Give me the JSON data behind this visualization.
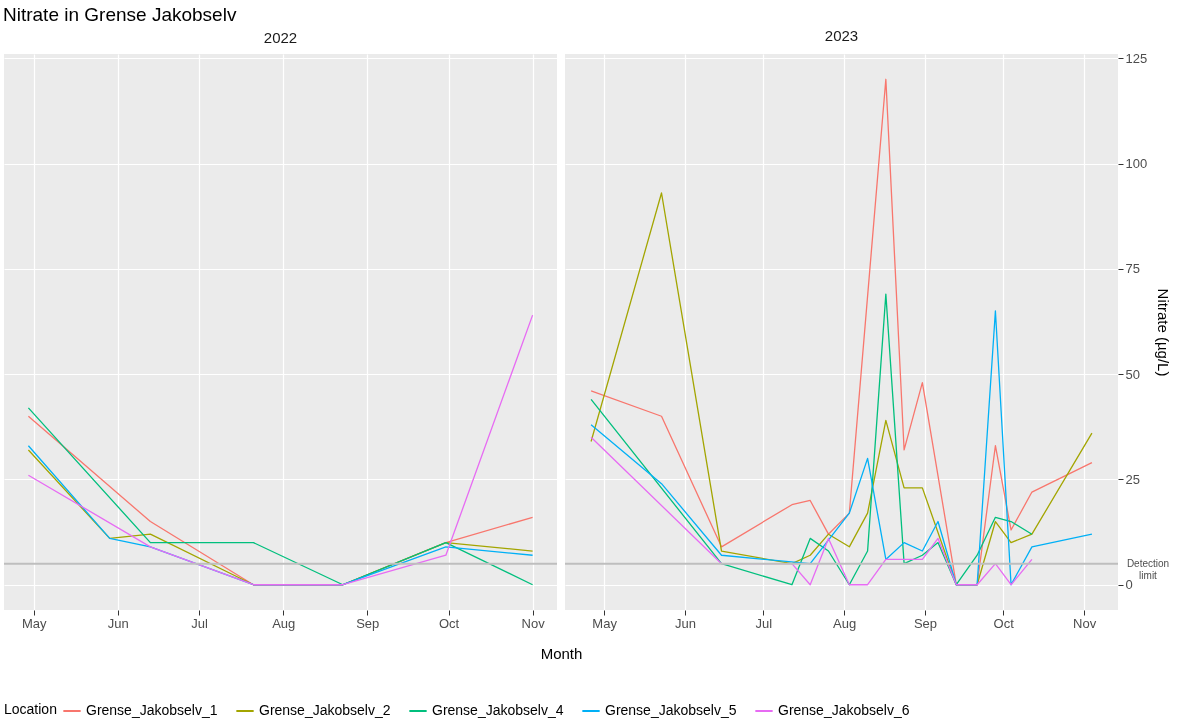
{
  "chart_data": [
    {
      "type": "line",
      "title": "Nitrate in Grense Jakobselv",
      "subtitle": "2022",
      "legend_title": "Location",
      "legend": "bottom",
      "xlim": [
        "2022-04-20",
        "2022-11-10"
      ],
      "ylim": [
        -6,
        126
      ],
      "xticks": [
        {
          "value": "2022-05-01",
          "label": "May"
        },
        {
          "value": "2022-06-01",
          "label": "Jun"
        },
        {
          "value": "2022-07-01",
          "label": "Jul"
        },
        {
          "value": "2022-08-01",
          "label": "Aug"
        },
        {
          "value": "2022-09-01",
          "label": "Sep"
        },
        {
          "value": "2022-10-01",
          "label": "Oct"
        },
        {
          "value": "2022-11-01",
          "label": "Nov"
        }
      ],
      "yticks": [
        0,
        25,
        50,
        75,
        100,
        125
      ],
      "tick_labels": "x",
      "grid": true,
      "ref_lines": [
        {
          "axis": "y",
          "value": 5,
          "color": "#bebebe"
        }
      ],
      "series": [
        {
          "name": "Grense_Jakobselv_1",
          "color": "#f8766d",
          "x": [
            "2022-04-29",
            "2022-06-13",
            "2022-07-21",
            "2022-08-23",
            "2022-09-30",
            "2022-11-01"
          ],
          "values": [
            40,
            15,
            0,
            0,
            10,
            16
          ]
        },
        {
          "name": "Grense_Jakobselv_2",
          "color": "#a3a500",
          "x": [
            "2022-04-29",
            "2022-05-29",
            "2022-06-13",
            "2022-07-21",
            "2022-08-23",
            "2022-09-30",
            "2022-11-01"
          ],
          "values": [
            32,
            11,
            12,
            0,
            0,
            10,
            8
          ]
        },
        {
          "name": "Grense_Jakobselv_4",
          "color": "#00bf7d",
          "x": [
            "2022-04-29",
            "2022-06-13",
            "2022-07-21",
            "2022-08-23",
            "2022-09-30",
            "2022-11-01"
          ],
          "values": [
            42,
            10,
            10,
            0,
            10,
            0
          ]
        },
        {
          "name": "Grense_Jakobselv_5",
          "color": "#00b0f6",
          "x": [
            "2022-04-29",
            "2022-05-29",
            "2022-06-13",
            "2022-07-21",
            "2022-08-23",
            "2022-09-30",
            "2022-11-01"
          ],
          "values": [
            33,
            11,
            9,
            0,
            0,
            9,
            7
          ]
        },
        {
          "name": "Grense_Jakobselv_6",
          "color": "#e76bf3",
          "x": [
            "2022-04-29",
            "2022-06-13",
            "2022-07-21",
            "2022-08-23",
            "2022-09-30",
            "2022-11-01"
          ],
          "values": [
            26,
            9,
            0,
            0,
            7,
            64
          ]
        }
      ]
    },
    {
      "type": "line",
      "subtitle": "2023",
      "xlabel": "Month",
      "ylabel": "Nitrate (µg/L)",
      "legend": "bottom",
      "xlim": [
        "2023-04-16",
        "2023-11-14"
      ],
      "ylim": [
        -6,
        126
      ],
      "xticks": [
        {
          "value": "2023-05-01",
          "label": "May"
        },
        {
          "value": "2023-06-01",
          "label": "Jun"
        },
        {
          "value": "2023-07-01",
          "label": "Jul"
        },
        {
          "value": "2023-08-01",
          "label": "Aug"
        },
        {
          "value": "2023-09-01",
          "label": "Sep"
        },
        {
          "value": "2023-10-01",
          "label": "Oct"
        },
        {
          "value": "2023-11-01",
          "label": "Nov"
        }
      ],
      "yticks": [
        0,
        25,
        50,
        75,
        100,
        125
      ],
      "grid": true,
      "ref_lines": [
        {
          "axis": "y",
          "value": 5,
          "label": "Detection limit",
          "color": "#bebebe"
        }
      ],
      "series": [
        {
          "name": "Grense_Jakobselv_1",
          "color": "#f8766d",
          "x": [
            "2023-04-26",
            "2023-05-23",
            "2023-06-15",
            "2023-07-12",
            "2023-07-19",
            "2023-07-26",
            "2023-08-03",
            "2023-08-17",
            "2023-08-24",
            "2023-08-31",
            "2023-09-13",
            "2023-09-21",
            "2023-09-28",
            "2023-10-04",
            "2023-10-12",
            "2023-11-04"
          ],
          "values": [
            46,
            40,
            9,
            19,
            20,
            12,
            17,
            120,
            32,
            48,
            0,
            0,
            33,
            13,
            22,
            29
          ]
        },
        {
          "name": "Grense_Jakobselv_2",
          "color": "#a3a500",
          "x": [
            "2023-04-26",
            "2023-05-23",
            "2023-06-15",
            "2023-07-12",
            "2023-07-19",
            "2023-07-26",
            "2023-08-03",
            "2023-08-10",
            "2023-08-17",
            "2023-08-24",
            "2023-08-31",
            "2023-09-13",
            "2023-09-21",
            "2023-09-28",
            "2023-10-04",
            "2023-10-12",
            "2023-11-04"
          ],
          "values": [
            34,
            93,
            8,
            5,
            7,
            12,
            9,
            17,
            39,
            23,
            23,
            0,
            0,
            15,
            10,
            12,
            36
          ]
        },
        {
          "name": "Grense_Jakobselv_4",
          "color": "#00bf7d",
          "x": [
            "2023-04-26",
            "2023-06-15",
            "2023-07-12",
            "2023-07-19",
            "2023-07-26",
            "2023-08-03",
            "2023-08-10",
            "2023-08-17",
            "2023-08-24",
            "2023-08-31",
            "2023-09-06",
            "2023-09-13",
            "2023-09-21",
            "2023-09-28",
            "2023-10-04",
            "2023-10-12"
          ],
          "values": [
            44,
            5,
            0,
            11,
            8,
            0,
            8,
            69,
            5,
            7,
            10,
            0,
            7,
            16,
            15,
            12
          ]
        },
        {
          "name": "Grense_Jakobselv_5",
          "color": "#00b0f6",
          "x": [
            "2023-04-26",
            "2023-05-23",
            "2023-06-15",
            "2023-07-19",
            "2023-08-03",
            "2023-08-10",
            "2023-08-17",
            "2023-08-24",
            "2023-08-31",
            "2023-09-06",
            "2023-09-13",
            "2023-09-21",
            "2023-09-28",
            "2023-10-04",
            "2023-10-12",
            "2023-11-04"
          ],
          "values": [
            38,
            24,
            7,
            5,
            17,
            30,
            6,
            10,
            8,
            15,
            0,
            0,
            65,
            0,
            9,
            12
          ]
        },
        {
          "name": "Grense_Jakobselv_6",
          "color": "#e76bf3",
          "x": [
            "2023-04-26",
            "2023-06-15",
            "2023-07-12",
            "2023-07-19",
            "2023-07-26",
            "2023-08-03",
            "2023-08-10",
            "2023-08-17",
            "2023-08-24",
            "2023-08-31",
            "2023-09-06",
            "2023-09-13",
            "2023-09-21",
            "2023-09-28",
            "2023-10-04",
            "2023-10-12"
          ],
          "values": [
            35,
            5,
            5,
            0,
            11,
            0,
            0,
            6,
            6,
            6,
            11,
            0,
            0,
            5,
            0,
            6
          ]
        }
      ]
    }
  ]
}
